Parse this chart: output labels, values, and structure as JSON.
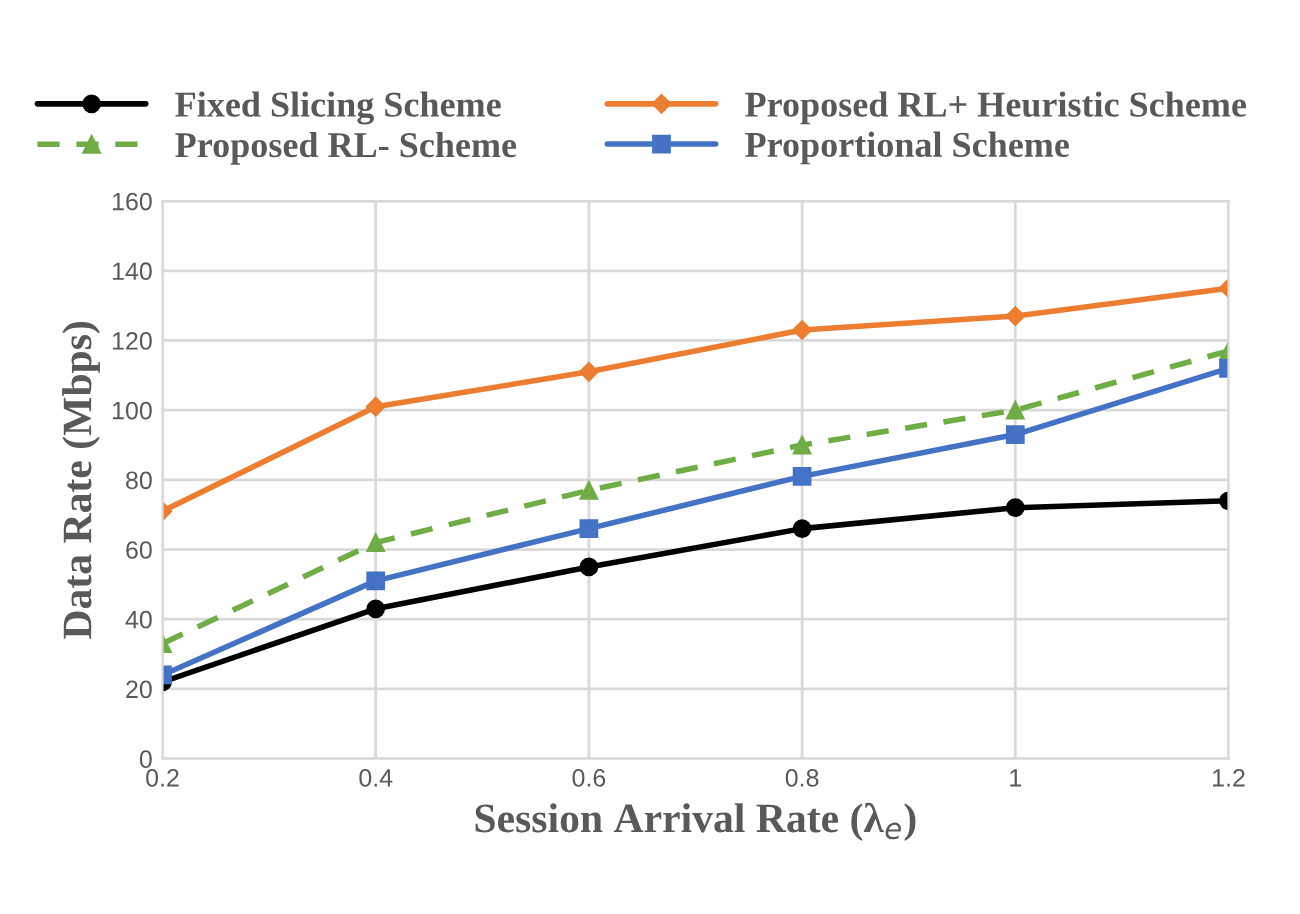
{
  "chart_data": {
    "type": "line",
    "xlabel": "Session Arrival Rate (λ$_{e}$)",
    "ylabel": "Data Rate (Mbps)",
    "x": [
      0.2,
      0.4,
      0.6,
      0.8,
      1,
      1.2
    ],
    "series": [
      {
        "name": "Fixed Slicing Scheme",
        "color": "#000000",
        "marker": "circle",
        "line_style": "solid",
        "values": [
          22,
          43,
          55,
          66,
          72,
          74
        ]
      },
      {
        "name": "Proposed RL- Scheme",
        "color": "#70ad47",
        "marker": "triangle",
        "line_style": "dashed",
        "values": [
          33,
          62,
          77,
          90,
          100,
          117
        ]
      },
      {
        "name": "Proposed RL+ Heuristic Scheme",
        "color": "#ed7d31",
        "marker": "diamond",
        "line_style": "solid",
        "values": [
          71,
          101,
          111,
          123,
          127,
          135
        ]
      },
      {
        "name": "Proportional Scheme",
        "color": "#4472c4",
        "marker": "square",
        "line_style": "solid",
        "values": [
          24,
          51,
          66,
          81,
          93,
          112
        ]
      }
    ],
    "xlim": [
      0.2,
      1.2
    ],
    "xticks": [
      0.2,
      0.4,
      0.6,
      0.8,
      1,
      1.2
    ],
    "ylim": [
      0,
      160
    ],
    "yticks": [
      0,
      20,
      40,
      60,
      80,
      100,
      120,
      140,
      160
    ],
    "grid": true,
    "legend": "top"
  }
}
